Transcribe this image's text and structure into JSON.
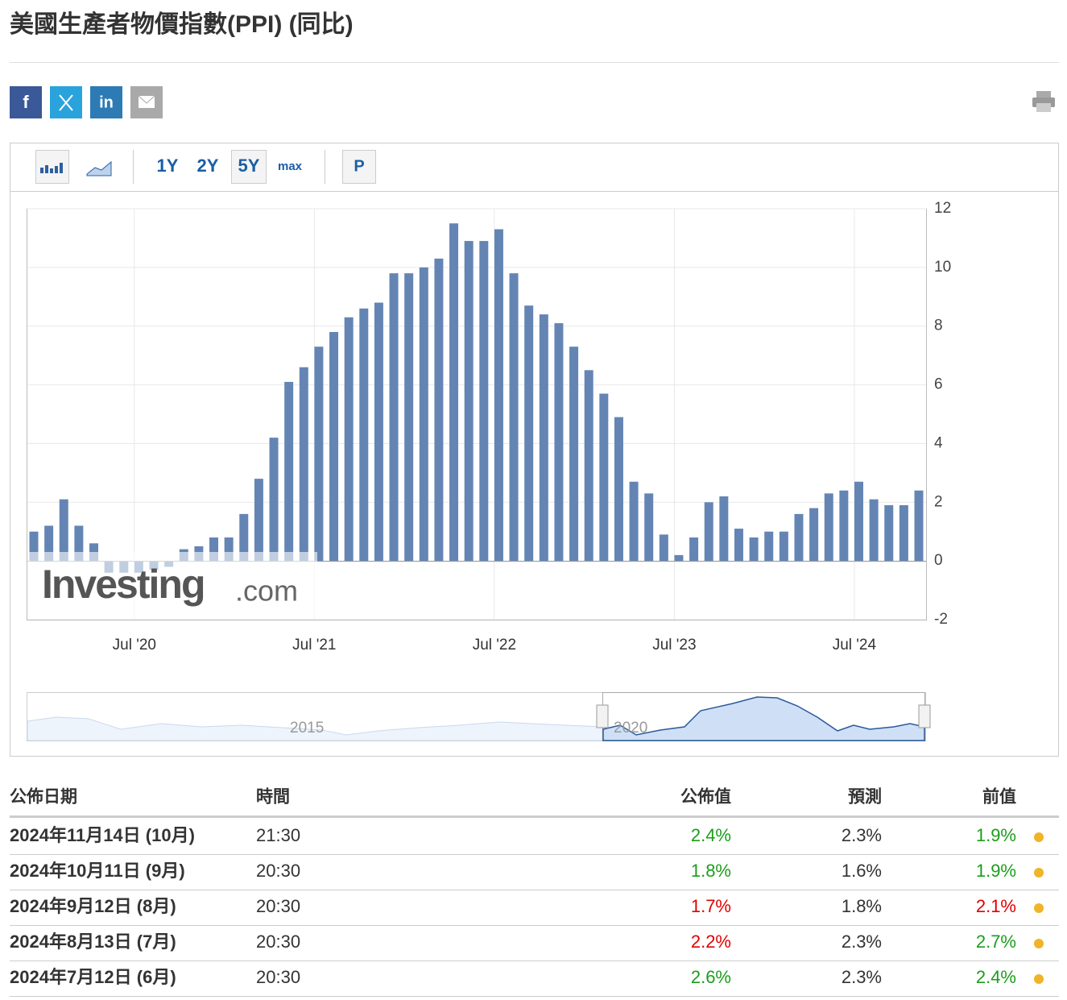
{
  "header": {
    "title": "美國生產者物價指數(PPI) (同比)",
    "share": [
      "f",
      "in"
    ]
  },
  "toolbar": {
    "ranges": [
      "1Y",
      "2Y",
      "5Y",
      "max"
    ],
    "selected": "5Y",
    "extra": "P"
  },
  "chart_data": {
    "type": "bar",
    "color": "#6485b4",
    "grid": true,
    "y_axis_side": "right",
    "watermark": [
      "Investing",
      ".com"
    ],
    "categories": [
      null,
      null,
      null,
      null,
      null,
      null,
      null,
      "Jul '20",
      null,
      null,
      null,
      null,
      null,
      null,
      null,
      null,
      null,
      null,
      null,
      "Jul '21",
      null,
      null,
      null,
      null,
      null,
      null,
      null,
      null,
      null,
      null,
      null,
      "Jul '22",
      null,
      null,
      null,
      null,
      null,
      null,
      null,
      null,
      null,
      null,
      null,
      "Jul '23",
      null,
      null,
      null,
      null,
      null,
      null,
      null,
      null,
      null,
      null,
      null,
      "Jul '24",
      null,
      null,
      null,
      null
    ],
    "values": [
      1.0,
      1.2,
      2.1,
      1.2,
      0.6,
      -0.4,
      -0.4,
      -0.4,
      -0.3,
      -0.2,
      0.4,
      0.5,
      0.8,
      0.8,
      1.6,
      2.8,
      4.2,
      6.1,
      6.6,
      7.3,
      7.8,
      8.3,
      8.6,
      8.8,
      9.8,
      9.8,
      10.0,
      10.3,
      11.5,
      10.9,
      10.9,
      11.3,
      9.8,
      8.7,
      8.4,
      8.1,
      7.3,
      6.5,
      5.7,
      4.9,
      2.7,
      2.3,
      0.9,
      0.2,
      0.8,
      2.0,
      2.2,
      1.1,
      0.8,
      1.0,
      1.0,
      1.6,
      1.8,
      2.3,
      2.4,
      2.7,
      2.1,
      1.9,
      1.9,
      2.4
    ],
    "ylim": [
      -2,
      12
    ],
    "yticks": [
      -2,
      0,
      2,
      4,
      6,
      8,
      10,
      12
    ],
    "navigator_labels": [
      "2015",
      "2020"
    ]
  },
  "table": {
    "headers": [
      "公佈日期",
      "時間",
      "公佈值",
      "預測",
      "前值"
    ],
    "rows": [
      [
        "2024年11月14日 (10月)",
        "21:30",
        "2.4%",
        "2.3%",
        "1.9%"
      ],
      [
        "2024年10月11日 (9月)",
        "20:30",
        "1.8%",
        "1.6%",
        "1.9%"
      ],
      [
        "2024年9月12日 (8月)",
        "20:30",
        "1.7%",
        "1.8%",
        "2.1%"
      ],
      [
        "2024年8月13日 (7月)",
        "20:30",
        "2.2%",
        "2.3%",
        "2.7%"
      ],
      [
        "2024年7月12日 (6月)",
        "20:30",
        "2.6%",
        "2.3%",
        "2.4%"
      ]
    ],
    "actual_colors": [
      "#1a9e1a",
      "#1a9e1a",
      "#e00000",
      "#e00000",
      "#1a9e1a"
    ],
    "previous_colors": [
      "#1a9e1a",
      "#1a9e1a",
      "#e00000",
      "#1a9e1a",
      "#1a9e1a"
    ]
  }
}
